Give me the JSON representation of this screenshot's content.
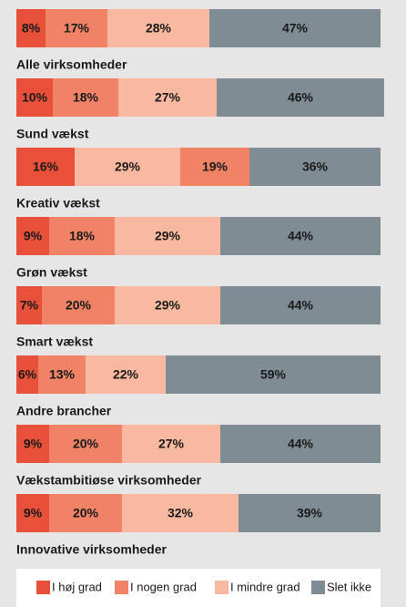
{
  "chart_data": {
    "type": "stacked_barh",
    "categories": [
      "Alle virksomheder",
      "Sund vækst",
      "Kreativ vækst",
      "Grøn vækst",
      "Smart vækst",
      "Andre brancher",
      "Vækstambitiøse virksomheder",
      "Innovative virksomheder"
    ],
    "xlim": [
      0,
      100
    ],
    "series": [
      {
        "name": "I høj grad",
        "color": "#e8503a",
        "colors": [
          "#e8503a",
          "#e8503a",
          "#e8503a",
          "#e8503a",
          "#e8503a",
          "#e8503a",
          "#e8503a",
          "#e8503a"
        ],
        "values": [
          8,
          10,
          16,
          9,
          7,
          6,
          9,
          9
        ],
        "value_labels": [
          "8%",
          "10%",
          "16%",
          "9%",
          "7%",
          "6%",
          "9%",
          "9%"
        ]
      },
      {
        "name": "I nogen grad",
        "color": "#f08366",
        "colors": [
          "#f08366",
          "#f08366",
          "#f9b9a0",
          "#f08366",
          "#f08366",
          "#f08366",
          "#f08366",
          "#f08366"
        ],
        "values": [
          17,
          18,
          29,
          18,
          20,
          13,
          20,
          20
        ],
        "value_labels": [
          "17%",
          "18%",
          "29%",
          "18%",
          "20%",
          "13%",
          "20%",
          "20%"
        ]
      },
      {
        "name": "I mindre grad",
        "color": "#f9b9a0",
        "colors": [
          "#f9b9a0",
          "#f9b9a0",
          "#f08366",
          "#f9b9a0",
          "#f9b9a0",
          "#f9b9a0",
          "#f9b9a0",
          "#f9b9a0"
        ],
        "values": [
          28,
          27,
          19,
          29,
          29,
          22,
          27,
          32
        ],
        "value_labels": [
          "28%",
          "27%",
          "19%",
          "29%",
          "29%",
          "22%",
          "27%",
          "32%"
        ]
      },
      {
        "name": "Slet ikke",
        "color": "#7f8c93",
        "colors": [
          "#7f8c93",
          "#7f8c93",
          "#7f8c93",
          "#7f8c93",
          "#7f8c93",
          "#7f8c93",
          "#7f8c93",
          "#7f8c93"
        ],
        "values": [
          47,
          46,
          36,
          44,
          44,
          59,
          44,
          39
        ],
        "value_labels": [
          "47%",
          "46%",
          "36%",
          "44%",
          "44%",
          "59%",
          "44%",
          "39%"
        ]
      }
    ],
    "legend": "bottom"
  }
}
